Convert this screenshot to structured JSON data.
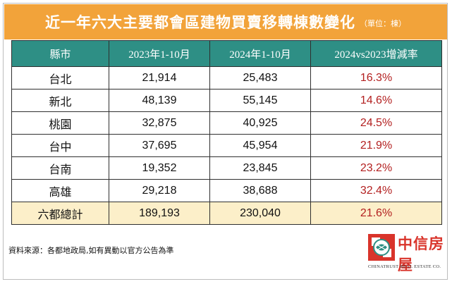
{
  "title": {
    "main": "近一年六大主要都會區建物買賣移轉棟數變化",
    "unit": "（單位：棟）"
  },
  "table": {
    "headers": [
      "縣市",
      "2023年1-10月",
      "2024年1-10月",
      "2024vs2023增減率"
    ],
    "rows": [
      {
        "city": "台北",
        "y2023": "21,914",
        "y2024": "25,483",
        "rate": "16.3%"
      },
      {
        "city": "新北",
        "y2023": "48,139",
        "y2024": "55,145",
        "rate": "14.6%"
      },
      {
        "city": "桃園",
        "y2023": "32,875",
        "y2024": "40,925",
        "rate": "24.5%"
      },
      {
        "city": "台中",
        "y2023": "37,695",
        "y2024": "45,954",
        "rate": "21.9%"
      },
      {
        "city": "台南",
        "y2023": "19,352",
        "y2024": "23,845",
        "rate": "23.2%"
      },
      {
        "city": "高雄",
        "y2023": "29,218",
        "y2024": "38,688",
        "rate": "32.4%"
      }
    ],
    "total": {
      "city": "六都總計",
      "y2023": "189,193",
      "y2024": "230,040",
      "rate": "21.6%"
    }
  },
  "source": "資料來源：各都地政局,如有異動以官方公告為準",
  "logo": {
    "name": "中信房屋",
    "subtitle": "CHINATRUST REAL ESTATE CO."
  },
  "colors": {
    "title_bg": "#f2a33a",
    "header_bg": "#2e8f85",
    "total_bg": "#fcefc9",
    "rate_text": "#b32020",
    "brand_red": "#d9342b"
  }
}
